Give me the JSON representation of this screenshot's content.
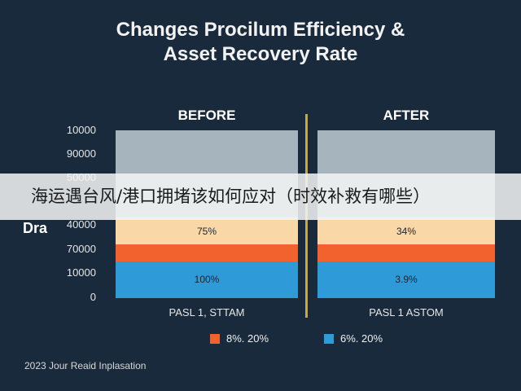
{
  "chart_data": {
    "type": "bar",
    "title_line1": "Changes Procilum Efficiency &",
    "title_line2": "Asset Recovery Rate",
    "ylabel": "Dra",
    "yticks": [
      "10000",
      "90000",
      "50000",
      "",
      "40000",
      "70000",
      "10000",
      "0"
    ],
    "panels": [
      {
        "heading": "BEFORE",
        "category": "PASL 1, STTAM",
        "segments": [
          {
            "label": "100%",
            "value": 22,
            "color": "#2e9ad8"
          },
          {
            "label": "",
            "value": 10,
            "color": "#f2622e"
          },
          {
            "label": "75%",
            "value": 16,
            "color": "#f9d7a6"
          },
          {
            "label": "",
            "value": 52,
            "color": "#a6b4be"
          }
        ]
      },
      {
        "heading": "AFTER",
        "category": "PASL 1 ASTOM",
        "segments": [
          {
            "label": "3.9%",
            "value": 22,
            "color": "#2e9ad8"
          },
          {
            "label": "",
            "value": 10,
            "color": "#f2622e"
          },
          {
            "label": "34%",
            "value": 16,
            "color": "#f9d7a6"
          },
          {
            "label": "",
            "value": 52,
            "color": "#a6b4be"
          }
        ]
      }
    ],
    "legend": [
      {
        "label": "8%. 20%",
        "color": "#f2622e"
      },
      {
        "label": "6%. 20%",
        "color": "#2e9ad8"
      }
    ],
    "ylim": [
      0,
      100
    ],
    "grid": false
  },
  "footer": "2023 Jour Reaid Inplasation",
  "overlay_text": "海运遇台风/港口拥堵该如何应对（时效补救有哪些）"
}
